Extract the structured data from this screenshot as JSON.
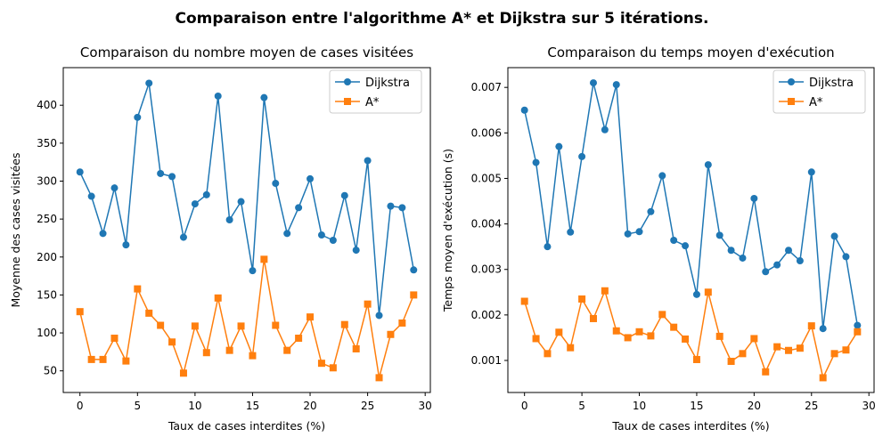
{
  "suptitle": "Comparaison entre l'algorithme A* et Dijkstra sur 5 itérations.",
  "colors": {
    "dijkstra": "#1f77b4",
    "astar": "#ff7f0e"
  },
  "chart_data": [
    {
      "type": "line",
      "title": "Comparaison du nombre moyen de cases visitées",
      "xlabel": "Taux de cases interdites (%)",
      "ylabel": "Moyenne des cases visitées",
      "xlim": [
        -1.45,
        30.45
      ],
      "ylim": [
        21.5,
        449.5
      ],
      "xticks": [
        0,
        5,
        10,
        15,
        20,
        25,
        30
      ],
      "xtick_labels": [
        "0",
        "5",
        "10",
        "15",
        "20",
        "25",
        "30"
      ],
      "yticks": [
        50,
        100,
        150,
        200,
        250,
        300,
        350,
        400
      ],
      "ytick_labels": [
        "50",
        "100",
        "150",
        "200",
        "250",
        "300",
        "350",
        "400"
      ],
      "legend_position": "upper right",
      "x": [
        0,
        1,
        2,
        3,
        4,
        5,
        6,
        7,
        8,
        9,
        10,
        11,
        12,
        13,
        14,
        15,
        16,
        17,
        18,
        19,
        20,
        21,
        22,
        23,
        24,
        25,
        26,
        27,
        28,
        29
      ],
      "series": [
        {
          "name": "Dijkstra",
          "marker": "circle",
          "color": "#1f77b4",
          "values": [
            312,
            280,
            231,
            291,
            216,
            384,
            429,
            310,
            306,
            226,
            270,
            282,
            412,
            249,
            273,
            182,
            410,
            297,
            231,
            265,
            303,
            229,
            222,
            281,
            209,
            327,
            123,
            267,
            265,
            183
          ]
        },
        {
          "name": "A*",
          "marker": "square",
          "color": "#ff7f0e",
          "values": [
            128,
            65,
            65,
            93,
            63,
            158,
            126,
            110,
            88,
            47,
            109,
            74,
            146,
            77,
            109,
            70,
            197,
            110,
            77,
            93,
            121,
            60,
            54,
            111,
            79,
            138,
            41,
            98,
            113,
            150
          ]
        }
      ]
    },
    {
      "type": "line",
      "title": "Comparaison du temps moyen d'exécution",
      "xlabel": "Taux de cases interdites (%)",
      "ylabel": "Temps moyen d'exécution (s)",
      "xlim": [
        -1.45,
        30.45
      ],
      "ylim": [
        0.000296,
        0.007434
      ],
      "xticks": [
        0,
        5,
        10,
        15,
        20,
        25,
        30
      ],
      "xtick_labels": [
        "0",
        "5",
        "10",
        "15",
        "20",
        "25",
        "30"
      ],
      "yticks": [
        0.001,
        0.002,
        0.003,
        0.004,
        0.005,
        0.006,
        0.007
      ],
      "ytick_labels": [
        "0.001",
        "0.002",
        "0.003",
        "0.004",
        "0.005",
        "0.006",
        "0.007"
      ],
      "legend_position": "upper right",
      "x": [
        0,
        1,
        2,
        3,
        4,
        5,
        6,
        7,
        8,
        9,
        10,
        11,
        12,
        13,
        14,
        15,
        16,
        17,
        18,
        19,
        20,
        21,
        22,
        23,
        24,
        25,
        26,
        27,
        28,
        29
      ],
      "series": [
        {
          "name": "Dijkstra",
          "marker": "circle",
          "color": "#1f77b4",
          "values": [
            0.0065,
            0.00535,
            0.0035,
            0.0057,
            0.00382,
            0.00548,
            0.0071,
            0.00607,
            0.00706,
            0.00378,
            0.00383,
            0.00427,
            0.00506,
            0.00364,
            0.00352,
            0.00245,
            0.0053,
            0.00375,
            0.00342,
            0.00325,
            0.00456,
            0.00295,
            0.0031,
            0.00342,
            0.00319,
            0.00514,
            0.0017,
            0.00373,
            0.00328,
            0.00177
          ]
        },
        {
          "name": "A*",
          "marker": "square",
          "color": "#ff7f0e",
          "values": [
            0.0023,
            0.00148,
            0.00115,
            0.00162,
            0.00128,
            0.00235,
            0.00192,
            0.00253,
            0.00165,
            0.0015,
            0.00163,
            0.00154,
            0.00201,
            0.00173,
            0.00147,
            0.00102,
            0.0025,
            0.00153,
            0.00098,
            0.00115,
            0.00148,
            0.00075,
            0.0013,
            0.00122,
            0.00127,
            0.00176,
            0.00062,
            0.00115,
            0.00123,
            0.00163
          ]
        }
      ]
    }
  ]
}
